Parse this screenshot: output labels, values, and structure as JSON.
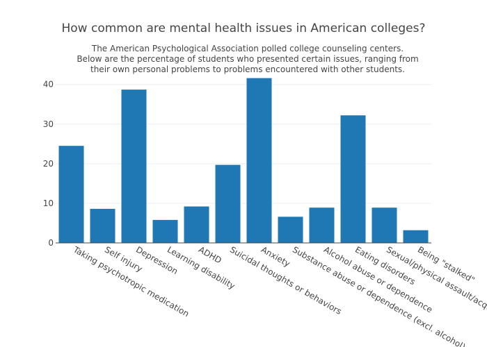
{
  "chart_data": {
    "type": "bar",
    "title": "How common are mental health issues in American colleges?",
    "subtitle_lines": [
      "The American Psychological Association polled college counseling centers.",
      "Below are the percentage of students who presented certain issues, ranging from",
      "their own personal problems to problems encountered with other students."
    ],
    "categories": [
      "Taking psychotropic medication",
      "Self injury",
      "Depression",
      "Learning disability",
      "ADHD",
      "Suicidal thoughts or behaviors",
      "Anxiety",
      "Substance abuse or dependence (excl. alcohol)",
      "Alcohol abuse or dependence",
      "Eating disorders",
      "Sexual/physical assault/acquaintance rape",
      "Being \"stalked\""
    ],
    "values": [
      24.5,
      8.6,
      38.7,
      5.8,
      9.2,
      19.7,
      41.6,
      6.6,
      8.9,
      32.2,
      8.9,
      3.2
    ],
    "yticks": [
      0,
      10,
      20,
      30,
      40
    ],
    "ylim": [
      0,
      43.8
    ],
    "bar_color": "#1f77b4",
    "xlabel": "",
    "ylabel": ""
  }
}
